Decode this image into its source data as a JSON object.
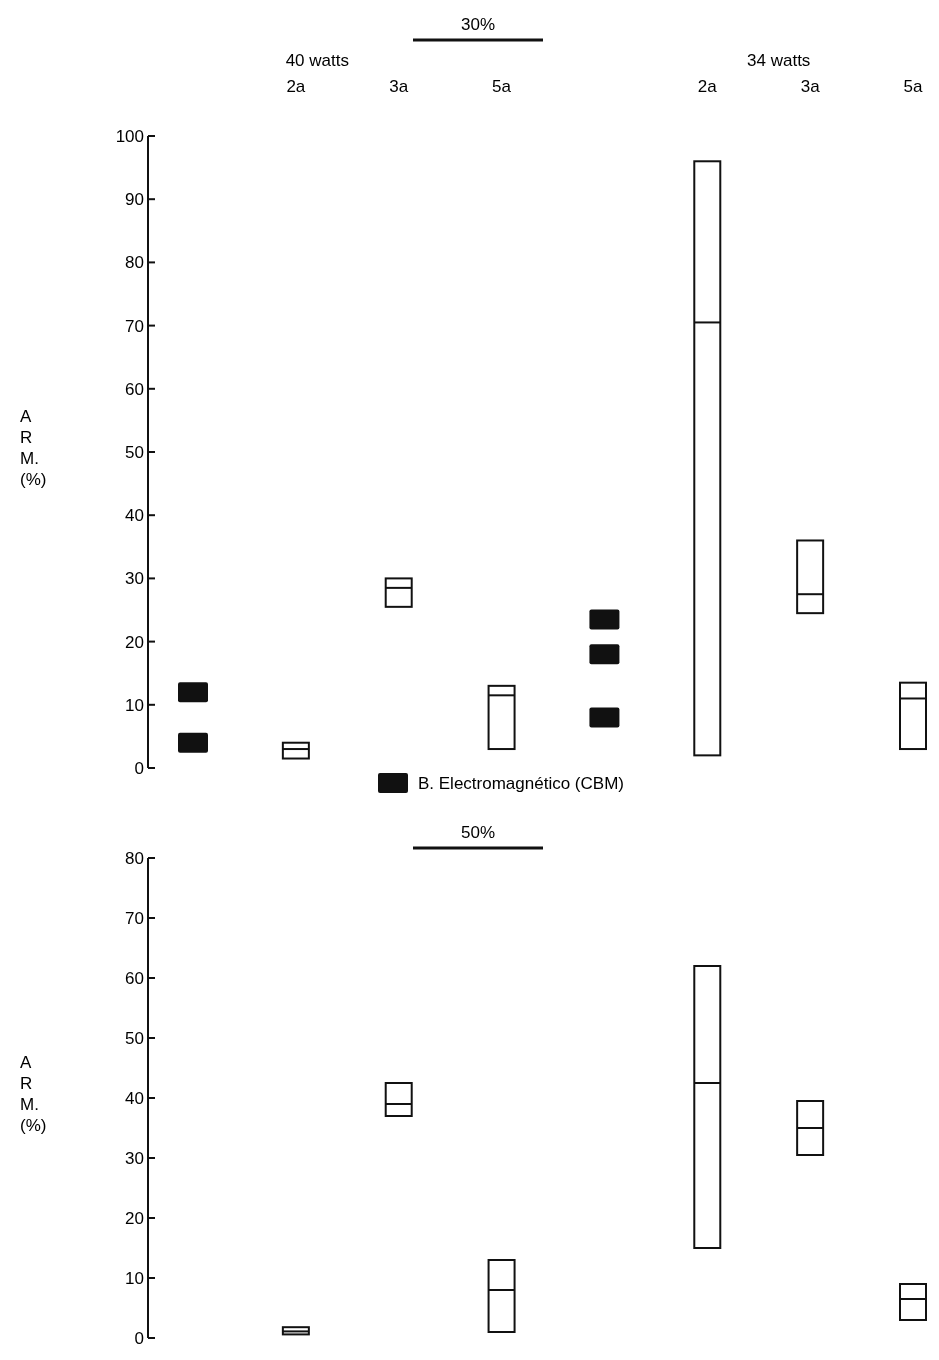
{
  "chart_data": [
    {
      "type": "box",
      "title": "30%",
      "annotations": [
        "40 watts",
        "34 watts"
      ],
      "ylabel": "A R M. (%)",
      "categories": [
        null,
        "2a",
        "3a",
        "5a",
        null,
        "2a",
        "3a",
        "5a"
      ],
      "boxes": [
        null,
        {
          "low": 1.5,
          "q1": 1.5,
          "median": 3,
          "q3": 4,
          "high": 4
        },
        {
          "low": 25.5,
          "q1": 25.5,
          "median": 28.5,
          "q3": 30,
          "high": 30
        },
        {
          "low": 3,
          "q1": 3,
          "median": 11.5,
          "q3": 13,
          "high": 13
        },
        null,
        {
          "low": 2,
          "q1": 2,
          "median": 70.5,
          "q3": 96,
          "high": 96
        },
        {
          "low": 24.5,
          "q1": 24.5,
          "median": 27.5,
          "q3": 36,
          "high": 36
        },
        {
          "low": 3,
          "q1": 3,
          "median": 11,
          "q3": 13.5,
          "high": 13.5
        }
      ],
      "series": [
        {
          "name": "B. Electromagnético (CBM)",
          "type": "scatter",
          "color": "#111111",
          "values": [
            12,
            null,
            null,
            null,
            23.5,
            null,
            null,
            null
          ]
        },
        {
          "type": "scatter",
          "color": "#111111",
          "values": [
            4,
            null,
            null,
            null,
            18,
            null,
            null,
            null
          ]
        },
        {
          "type": "scatter",
          "color": "#111111",
          "values": [
            null,
            null,
            null,
            null,
            8,
            null,
            null,
            null
          ]
        }
      ],
      "marker": "square",
      "legend": "bottom",
      "ylim": [
        0,
        100
      ],
      "yticks": [
        0,
        10,
        20,
        30,
        40,
        50,
        60,
        70,
        80,
        90,
        100
      ]
    },
    {
      "type": "box",
      "title": "50%",
      "ylabel": "A R M. (%)",
      "categories": [
        null,
        null,
        null,
        null,
        null,
        null,
        null,
        null
      ],
      "boxes": [
        null,
        {
          "low": 0.6,
          "q1": 0.6,
          "median": 1.1,
          "q3": 1.8,
          "high": 1.8
        },
        {
          "low": 37,
          "q1": 37,
          "median": 39,
          "q3": 42.5,
          "high": 42.5
        },
        {
          "low": 1,
          "q1": 1,
          "median": 8,
          "q3": 13,
          "high": 13
        },
        null,
        {
          "low": 15,
          "q1": 15,
          "median": 42.5,
          "q3": 62,
          "high": 62
        },
        {
          "low": 30.5,
          "q1": 30.5,
          "median": 35,
          "q3": 39.5,
          "high": 39.5
        },
        {
          "low": 3,
          "q1": 3,
          "median": 6.5,
          "q3": 9,
          "high": 9
        }
      ],
      "ylim": [
        0,
        80
      ],
      "yticks": [
        0,
        10,
        20,
        30,
        40,
        50,
        60,
        70,
        80
      ],
      "tick_labels": "y"
    }
  ]
}
